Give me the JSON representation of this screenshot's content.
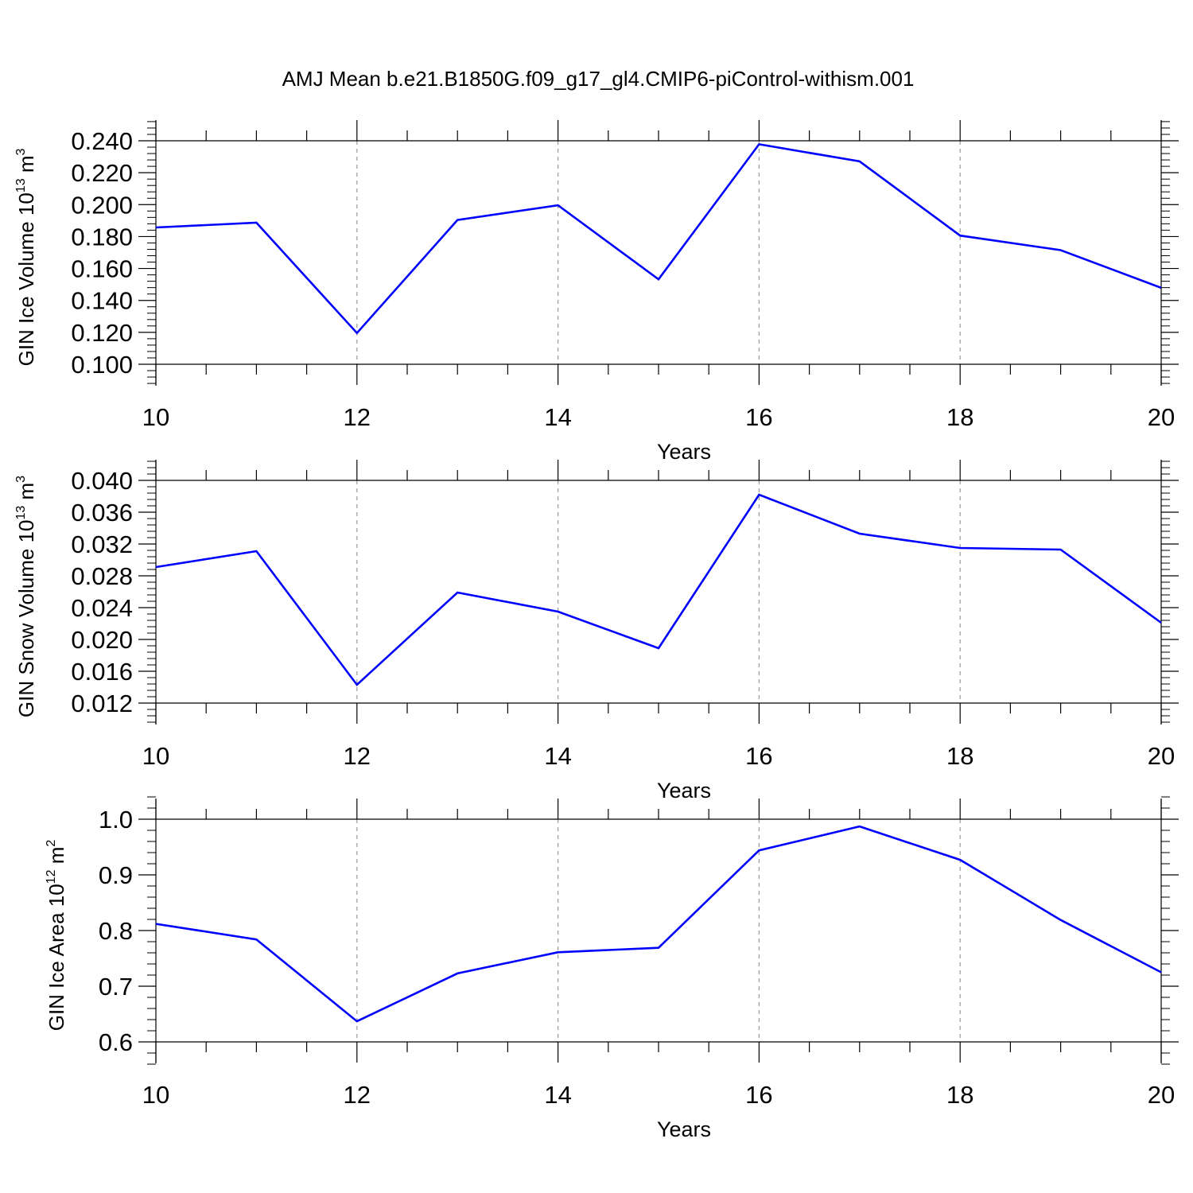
{
  "figure": {
    "title": "AMJ Mean b.e21.B1850G.f09_g17_gl4.CMIP6-piControl-withism.001",
    "line_color": "#0000ff",
    "grid_color": "#999999"
  },
  "chart_data": [
    {
      "type": "line",
      "name": "ice-volume",
      "x": [
        10,
        11,
        12,
        13,
        14,
        15,
        16,
        17,
        18,
        19,
        20
      ],
      "series": [
        {
          "values": [
            0.1857,
            0.1887,
            0.1196,
            0.1904,
            0.1996,
            0.1532,
            0.2378,
            0.2271,
            0.1806,
            0.1715,
            0.1479
          ]
        }
      ],
      "xlim": [
        10,
        20
      ],
      "ylim": [
        0.1,
        0.24
      ],
      "xticks": [
        10,
        12,
        14,
        16,
        18,
        20
      ],
      "yticks": [
        0.1,
        0.12,
        0.14,
        0.16,
        0.18,
        0.2,
        0.22,
        0.24
      ],
      "ytick_labels": [
        "0.100",
        "0.120",
        "0.140",
        "0.160",
        "0.180",
        "0.200",
        "0.220",
        "0.240"
      ],
      "xlabel": "Years",
      "ylabel": "GIN Ice Volume 10",
      "ylabel_exp": "13",
      "ylabel_unit": " m",
      "ylabel_unit_exp": "3",
      "grid": "vertical-dashed"
    },
    {
      "type": "line",
      "name": "snow-volume",
      "x": [
        10,
        11,
        12,
        13,
        14,
        15,
        16,
        17,
        18,
        19,
        20
      ],
      "series": [
        {
          "values": [
            0.0291,
            0.0311,
            0.0143,
            0.0259,
            0.0235,
            0.0189,
            0.0382,
            0.0333,
            0.0315,
            0.0313,
            0.0221
          ]
        }
      ],
      "xlim": [
        10,
        20
      ],
      "ylim": [
        0.012,
        0.04
      ],
      "xticks": [
        10,
        12,
        14,
        16,
        18,
        20
      ],
      "yticks": [
        0.012,
        0.016,
        0.02,
        0.024,
        0.028,
        0.032,
        0.036,
        0.04
      ],
      "ytick_labels": [
        "0.012",
        "0.016",
        "0.020",
        "0.024",
        "0.028",
        "0.032",
        "0.036",
        "0.040"
      ],
      "xlabel": "Years",
      "ylabel": "GIN Snow Volume 10",
      "ylabel_exp": "13",
      "ylabel_unit": " m",
      "ylabel_unit_exp": "3",
      "grid": "vertical-dashed"
    },
    {
      "type": "line",
      "name": "ice-area",
      "x": [
        10,
        11,
        12,
        13,
        14,
        15,
        16,
        17,
        18,
        19,
        20
      ],
      "series": [
        {
          "values": [
            0.812,
            0.784,
            0.637,
            0.723,
            0.761,
            0.769,
            0.944,
            0.987,
            0.927,
            0.819,
            0.725
          ]
        }
      ],
      "xlim": [
        10,
        20
      ],
      "ylim": [
        0.6,
        1.0
      ],
      "xticks": [
        10,
        12,
        14,
        16,
        18,
        20
      ],
      "yticks": [
        0.6,
        0.7,
        0.8,
        0.9,
        1.0
      ],
      "ytick_labels": [
        "0.6",
        "0.7",
        "0.8",
        "0.9",
        "1.0"
      ],
      "xlabel": "Years",
      "ylabel": "GIN Ice Area 10",
      "ylabel_exp": "12",
      "ylabel_unit": " m",
      "ylabel_unit_exp": "2",
      "grid": "vertical-dashed"
    }
  ]
}
